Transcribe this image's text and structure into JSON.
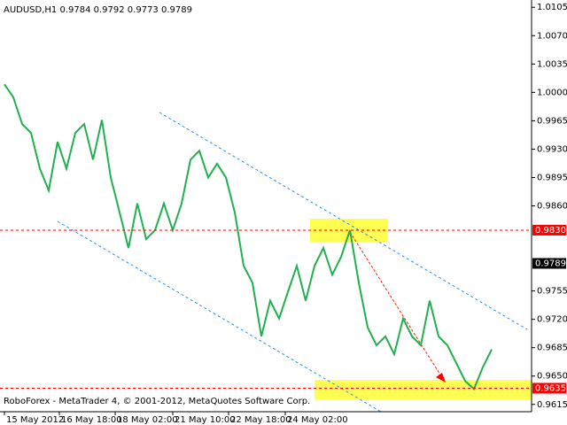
{
  "chart_data": {
    "type": "line",
    "title": "AUDUSD,H1  0.9784 0.9792 0.9773 0.9789",
    "footer": "RoboForex - MetaTrader 4, © 2001-2012, MetaQuotes Software Corp.",
    "x": [
      0,
      1,
      2,
      3,
      4,
      5,
      6,
      7,
      8,
      9,
      10,
      11,
      12,
      13,
      14,
      15,
      16,
      17,
      18,
      19,
      20,
      21,
      22,
      23,
      24,
      25,
      26,
      27,
      28,
      29,
      30,
      31,
      32,
      33,
      34,
      35,
      36,
      37,
      38,
      39,
      40,
      41,
      42,
      43,
      44,
      45,
      46,
      47,
      48,
      49,
      50,
      51,
      52,
      53,
      54,
      55
    ],
    "series": [
      {
        "name": "AUDUSD,H1",
        "color": "#20b050",
        "values": [
          1.001,
          0.9994,
          0.9961,
          0.995,
          0.9906,
          0.9879,
          0.9939,
          0.9906,
          0.995,
          0.9961,
          0.9917,
          0.9966,
          0.9895,
          0.9852,
          0.9808,
          0.9863,
          0.9819,
          0.983,
          0.9863,
          0.983,
          0.9863,
          0.9917,
          0.9928,
          0.9895,
          0.9912,
          0.9895,
          0.9852,
          0.9786,
          0.9765,
          0.9699,
          0.9743,
          0.9721,
          0.9754,
          0.9786,
          0.9743,
          0.9786,
          0.9808,
          0.9775,
          0.9797,
          0.983,
          0.9765,
          0.971,
          0.9688,
          0.9699,
          0.9677,
          0.9721,
          0.9699,
          0.9688,
          0.9743,
          0.9699,
          0.9688,
          0.9666,
          0.9644,
          0.9634,
          0.9661,
          0.9683
        ]
      }
    ],
    "xlim": [
      -0.5,
      59.5
    ],
    "xticks": [
      {
        "value": 0,
        "label": "15 May 2012"
      },
      {
        "value": 6.2,
        "label": "16 May 18:00"
      },
      {
        "value": 12.5,
        "label": "18 May 02:00"
      },
      {
        "value": 19,
        "label": "21 May 10:00"
      },
      {
        "value": 25.3,
        "label": "22 May 18:00"
      },
      {
        "value": 31.7,
        "label": "24 May 02:00"
      }
    ],
    "ylim": [
      0.9606,
      1.0114
    ],
    "yticks": [
      1.0105,
      {
        "value": 1.007,
        "label": "1.0070"
      },
      1.0035,
      {
        "value": 1,
        "label": "1.0000"
      },
      0.9965,
      {
        "value": 0.993,
        "label": "0.9930"
      },
      0.9895,
      {
        "value": 0.986,
        "label": "0.9860"
      },
      0.9755,
      {
        "value": 0.972,
        "label": "0.9720"
      },
      0.9685,
      {
        "value": 0.965,
        "label": "0.9650"
      },
      0.9615
    ],
    "levels": [
      {
        "value": 0.983,
        "label": "0.9830",
        "color": "#ff0000",
        "line": true
      },
      {
        "value": 0.9789,
        "label": "0.9789",
        "color": "#000000",
        "line": false
      },
      {
        "value": 0.9635,
        "label": "0.9635",
        "color": "#ff0000",
        "line": true
      }
    ]
  }
}
